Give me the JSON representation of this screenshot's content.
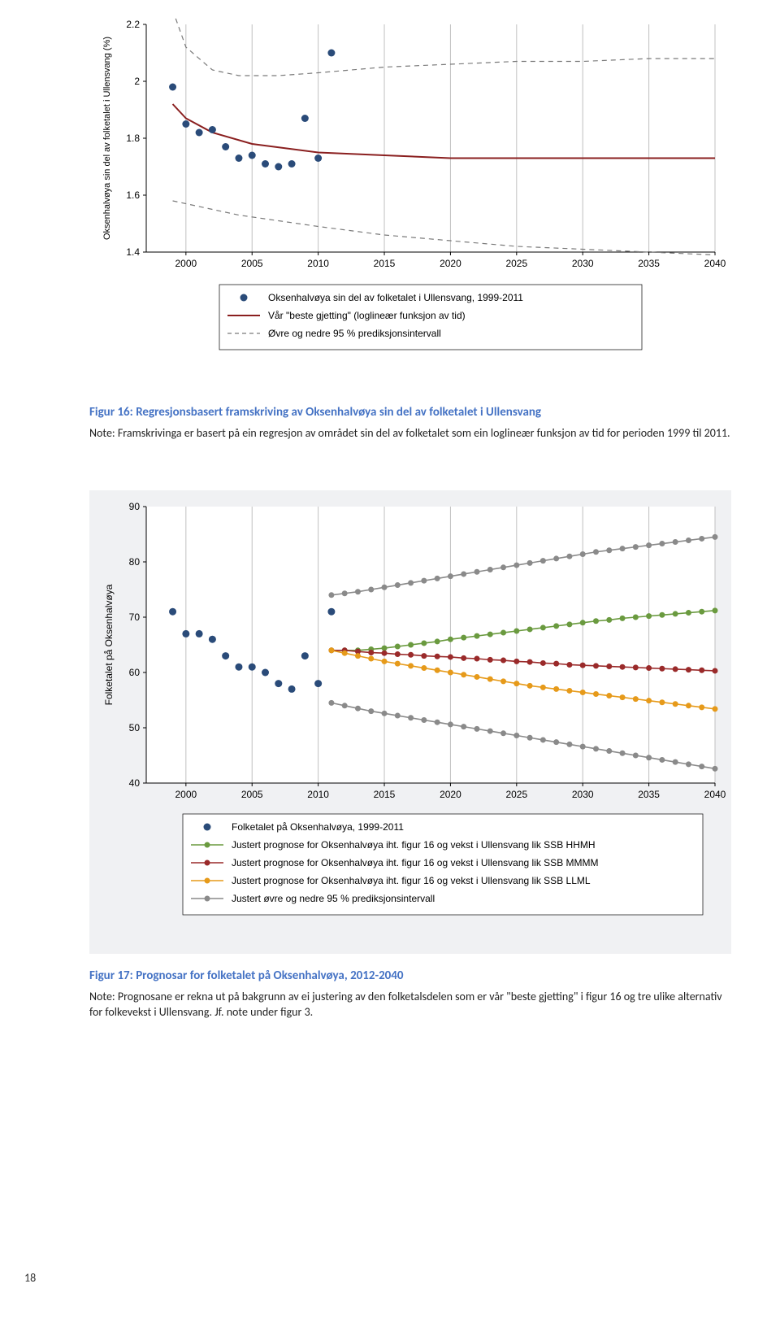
{
  "page_number": "18",
  "chart1": {
    "type": "scatter+line",
    "background_color": "#ffffff",
    "grid_x_color": "#c0c0c0",
    "axis_color": "#000000",
    "tick_fontsize": 12,
    "ylabel": "Oksenhalvøya sin del av folketalet i Ullensvang (%)",
    "ylabel_fontsize": 11,
    "ylim": [
      1.4,
      2.2
    ],
    "ytick_step": 0.2,
    "yticks": [
      "1.4",
      "1.6",
      "1.8",
      "2",
      "2.2"
    ],
    "xlim": [
      1997,
      2040
    ],
    "xticks": [
      "2000",
      "2005",
      "2010",
      "2015",
      "2020",
      "2025",
      "2030",
      "2035",
      "2040"
    ],
    "data_points": {
      "color": "#2a4b79",
      "radius": 4.5,
      "x": [
        1999,
        2000,
        2001,
        2002,
        2003,
        2004,
        2005,
        2006,
        2007,
        2008,
        2009,
        2010,
        2011
      ],
      "y": [
        1.98,
        1.85,
        1.82,
        1.83,
        1.77,
        1.73,
        1.74,
        1.71,
        1.7,
        1.71,
        1.87,
        1.73,
        2.1
      ]
    },
    "fit_line": {
      "color": "#8a1f1f",
      "width": 2,
      "x": [
        1999,
        2000,
        2002,
        2005,
        2010,
        2015,
        2020,
        2025,
        2030,
        2035,
        2040
      ],
      "y": [
        1.92,
        1.87,
        1.82,
        1.78,
        1.75,
        1.74,
        1.73,
        1.73,
        1.73,
        1.73,
        1.73
      ]
    },
    "upper_ci": {
      "color": "#7a7a7a",
      "dash": "6 5",
      "width": 1.2,
      "x": [
        1999,
        2000,
        2002,
        2004,
        2007,
        2010,
        2015,
        2020,
        2025,
        2030,
        2035,
        2040
      ],
      "y": [
        2.25,
        2.12,
        2.04,
        2.02,
        2.02,
        2.03,
        2.05,
        2.06,
        2.07,
        2.07,
        2.08,
        2.08
      ]
    },
    "lower_ci": {
      "color": "#7a7a7a",
      "dash": "6 5",
      "width": 1.2,
      "x": [
        1999,
        2000,
        2002,
        2004,
        2007,
        2010,
        2015,
        2020,
        2025,
        2030,
        2035,
        2040
      ],
      "y": [
        1.58,
        1.57,
        1.55,
        1.53,
        1.51,
        1.49,
        1.46,
        1.44,
        1.42,
        1.41,
        1.4,
        1.39
      ]
    },
    "legend": {
      "border_color": "#000000",
      "items": [
        {
          "kind": "dot",
          "color": "#2a4b79",
          "label": "Oksenhalvøya sin del av folketalet i Ullensvang, 1999-2011"
        },
        {
          "kind": "line",
          "color": "#8a1f1f",
          "label": "Vår \"beste gjetting\" (loglineær funksjon av tid)"
        },
        {
          "kind": "dash",
          "color": "#7a7a7a",
          "label": "Øvre og nedre 95 % prediksjonsintervall"
        }
      ]
    }
  },
  "caption1": {
    "title": "Figur 16: Regresjonsbasert framskriving av Oksenhalvøya sin del av folketalet i Ullensvang",
    "note": "Note: Framskrivinga er basert på ein regresjon av området sin del av folketalet som ein loglineær funksjon av tid for perioden 1999 til 2011."
  },
  "chart2": {
    "type": "scatter+line",
    "panel_bg": "#f0f1f3",
    "plot_bg": "#ffffff",
    "grid_x_color": "#c0c0c0",
    "axis_color": "#000000",
    "tick_fontsize": 12,
    "ylabel": "Folketalet på Oksenhalvøya",
    "ylabel_fontsize": 12,
    "ylim": [
      40,
      90
    ],
    "ytick_step": 10,
    "yticks": [
      "40",
      "50",
      "60",
      "70",
      "80",
      "90"
    ],
    "xlim": [
      1997,
      2040
    ],
    "xticks": [
      "2000",
      "2005",
      "2010",
      "2015",
      "2020",
      "2025",
      "2030",
      "2035",
      "2040"
    ],
    "observed": {
      "color": "#2a4b79",
      "radius": 4.5,
      "x": [
        1999,
        2000,
        2001,
        2002,
        2003,
        2004,
        2005,
        2006,
        2007,
        2008,
        2009,
        2010,
        2011
      ],
      "y": [
        71,
        67,
        67,
        66,
        63,
        61,
        61,
        60,
        58,
        57,
        63,
        58,
        71
      ]
    },
    "series_hhm": {
      "color": "#6a9a3f",
      "radius": 3.5,
      "width": 1.6,
      "x": [
        2011,
        2012,
        2013,
        2014,
        2015,
        2016,
        2017,
        2018,
        2019,
        2020,
        2021,
        2022,
        2023,
        2024,
        2025,
        2026,
        2027,
        2028,
        2029,
        2030,
        2031,
        2032,
        2033,
        2034,
        2035,
        2036,
        2037,
        2038,
        2039,
        2040
      ],
      "y": [
        64,
        64,
        64,
        64.2,
        64.4,
        64.7,
        65,
        65.3,
        65.6,
        66,
        66.3,
        66.6,
        66.9,
        67.2,
        67.5,
        67.8,
        68.1,
        68.4,
        68.7,
        69,
        69.3,
        69.5,
        69.8,
        70,
        70.2,
        70.4,
        70.6,
        70.8,
        71,
        71.2
      ]
    },
    "series_mmmm": {
      "color": "#9a2a2a",
      "radius": 3.5,
      "width": 1.6,
      "x": [
        2011,
        2012,
        2013,
        2014,
        2015,
        2016,
        2017,
        2018,
        2019,
        2020,
        2021,
        2022,
        2023,
        2024,
        2025,
        2026,
        2027,
        2028,
        2029,
        2030,
        2031,
        2032,
        2033,
        2034,
        2035,
        2036,
        2037,
        2038,
        2039,
        2040
      ],
      "y": [
        64,
        64,
        63.8,
        63.6,
        63.5,
        63.3,
        63.2,
        63,
        62.9,
        62.8,
        62.6,
        62.5,
        62.3,
        62.2,
        62,
        61.9,
        61.7,
        61.6,
        61.4,
        61.3,
        61.2,
        61.1,
        61,
        60.9,
        60.8,
        60.7,
        60.6,
        60.5,
        60.4,
        60.3
      ]
    },
    "series_llml": {
      "color": "#e69a1a",
      "radius": 3.5,
      "width": 1.6,
      "x": [
        2011,
        2012,
        2013,
        2014,
        2015,
        2016,
        2017,
        2018,
        2019,
        2020,
        2021,
        2022,
        2023,
        2024,
        2025,
        2026,
        2027,
        2028,
        2029,
        2030,
        2031,
        2032,
        2033,
        2034,
        2035,
        2036,
        2037,
        2038,
        2039,
        2040
      ],
      "y": [
        64,
        63.5,
        63,
        62.5,
        62,
        61.6,
        61.2,
        60.8,
        60.4,
        60,
        59.6,
        59.2,
        58.8,
        58.4,
        58,
        57.6,
        57.3,
        57,
        56.7,
        56.4,
        56.1,
        55.8,
        55.5,
        55.2,
        54.9,
        54.6,
        54.3,
        54,
        53.7,
        53.4
      ]
    },
    "ci_upper": {
      "color": "#8a8a8a",
      "radius": 3.5,
      "width": 1.6,
      "x": [
        2011,
        2012,
        2013,
        2014,
        2015,
        2016,
        2017,
        2018,
        2019,
        2020,
        2021,
        2022,
        2023,
        2024,
        2025,
        2026,
        2027,
        2028,
        2029,
        2030,
        2031,
        2032,
        2033,
        2034,
        2035,
        2036,
        2037,
        2038,
        2039,
        2040
      ],
      "y": [
        74,
        74.3,
        74.6,
        75,
        75.4,
        75.8,
        76.2,
        76.6,
        77,
        77.4,
        77.8,
        78.2,
        78.6,
        79,
        79.4,
        79.8,
        80.2,
        80.6,
        81,
        81.4,
        81.8,
        82.1,
        82.4,
        82.7,
        83,
        83.3,
        83.6,
        83.9,
        84.2,
        84.5
      ]
    },
    "ci_lower": {
      "color": "#8a8a8a",
      "radius": 3.5,
      "width": 1.6,
      "x": [
        2011,
        2012,
        2013,
        2014,
        2015,
        2016,
        2017,
        2018,
        2019,
        2020,
        2021,
        2022,
        2023,
        2024,
        2025,
        2026,
        2027,
        2028,
        2029,
        2030,
        2031,
        2032,
        2033,
        2034,
        2035,
        2036,
        2037,
        2038,
        2039,
        2040
      ],
      "y": [
        54.5,
        54,
        53.5,
        53,
        52.6,
        52.2,
        51.8,
        51.4,
        51,
        50.6,
        50.2,
        49.8,
        49.4,
        49,
        48.6,
        48.2,
        47.8,
        47.4,
        47,
        46.6,
        46.2,
        45.8,
        45.4,
        45,
        44.6,
        44.2,
        43.8,
        43.4,
        43,
        42.6
      ]
    },
    "legend": {
      "border_color": "#000000",
      "items": [
        {
          "kind": "dot",
          "color": "#2a4b79",
          "label": "Folketalet på Oksenhalvøya, 1999-2011"
        },
        {
          "kind": "linedot",
          "color": "#6a9a3f",
          "label": "Justert prognose for Oksenhalvøya iht. figur 16 og vekst i Ullensvang lik SSB HHMH"
        },
        {
          "kind": "linedot",
          "color": "#9a2a2a",
          "label": "Justert prognose for Oksenhalvøya iht. figur 16 og vekst i Ullensvang lik SSB MMMM"
        },
        {
          "kind": "linedot",
          "color": "#e69a1a",
          "label": "Justert prognose for Oksenhalvøya iht. figur 16 og vekst i Ullensvang lik SSB LLML"
        },
        {
          "kind": "linedot",
          "color": "#8a8a8a",
          "label": "Justert øvre og nedre 95 % prediksjonsintervall"
        }
      ]
    }
  },
  "caption2": {
    "title": "Figur 17: Prognosar for folketalet på Oksenhalvøya, 2012-2040",
    "note": "Note: Prognosane er rekna ut på bakgrunn av ei justering av den folketalsdelen som er vår \"beste gjetting\" i figur 16 og tre ulike alternativ for folkevekst i Ullensvang. Jf. note under figur 3."
  }
}
